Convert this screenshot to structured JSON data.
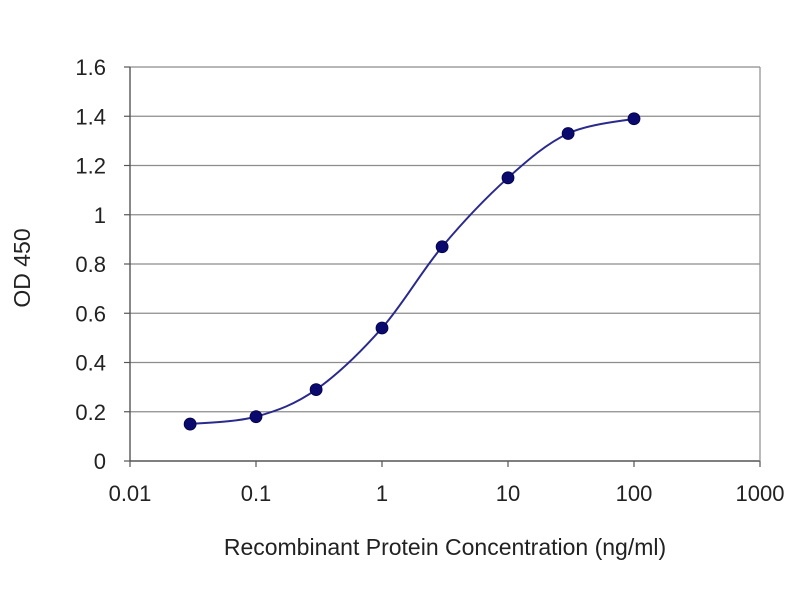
{
  "chart_data": {
    "type": "line",
    "title": "",
    "xlabel": "Recombinant Protein Concentration (ng/ml)",
    "ylabel": "OD 450",
    "x_scale": "log",
    "xlim": [
      0.01,
      1000
    ],
    "ylim": [
      0,
      1.6
    ],
    "x_tick_labels": [
      "0.01",
      "0.1",
      "1",
      "10",
      "100",
      "1000"
    ],
    "y_tick_labels": [
      "0",
      "0.2",
      "0.4",
      "0.6",
      "0.8",
      "1",
      "1.2",
      "1.4",
      "1.6"
    ],
    "grid": "horizontal",
    "legend": "none",
    "series": [
      {
        "color": "#2a2a8c",
        "marker_color": "#0a0a6e",
        "x": [
          0.03,
          0.1,
          0.3,
          1,
          3,
          10,
          30,
          100
        ],
        "y": [
          0.15,
          0.18,
          0.29,
          0.54,
          0.87,
          1.15,
          1.33,
          1.39
        ]
      }
    ]
  }
}
